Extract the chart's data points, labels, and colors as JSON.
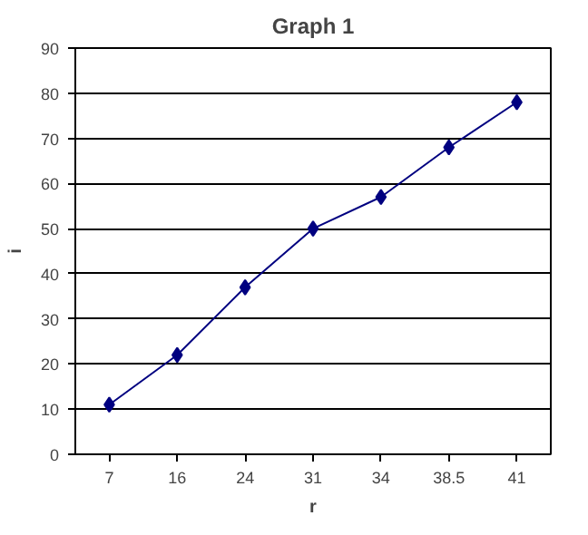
{
  "chart_data": {
    "type": "line",
    "title": "Graph 1",
    "xlabel": "r",
    "ylabel": "i",
    "categories": [
      "7",
      "16",
      "24",
      "31",
      "34",
      "38.5",
      "41"
    ],
    "series": [
      {
        "color": "#000080",
        "values": [
          11,
          22,
          37,
          50,
          57,
          68,
          78
        ]
      }
    ],
    "ylim": [
      0,
      90
    ],
    "yticks": [
      0,
      10,
      20,
      30,
      40,
      50,
      60,
      70,
      80,
      90
    ],
    "grid": "y",
    "marker": "diamond",
    "line_style": "solid"
  }
}
